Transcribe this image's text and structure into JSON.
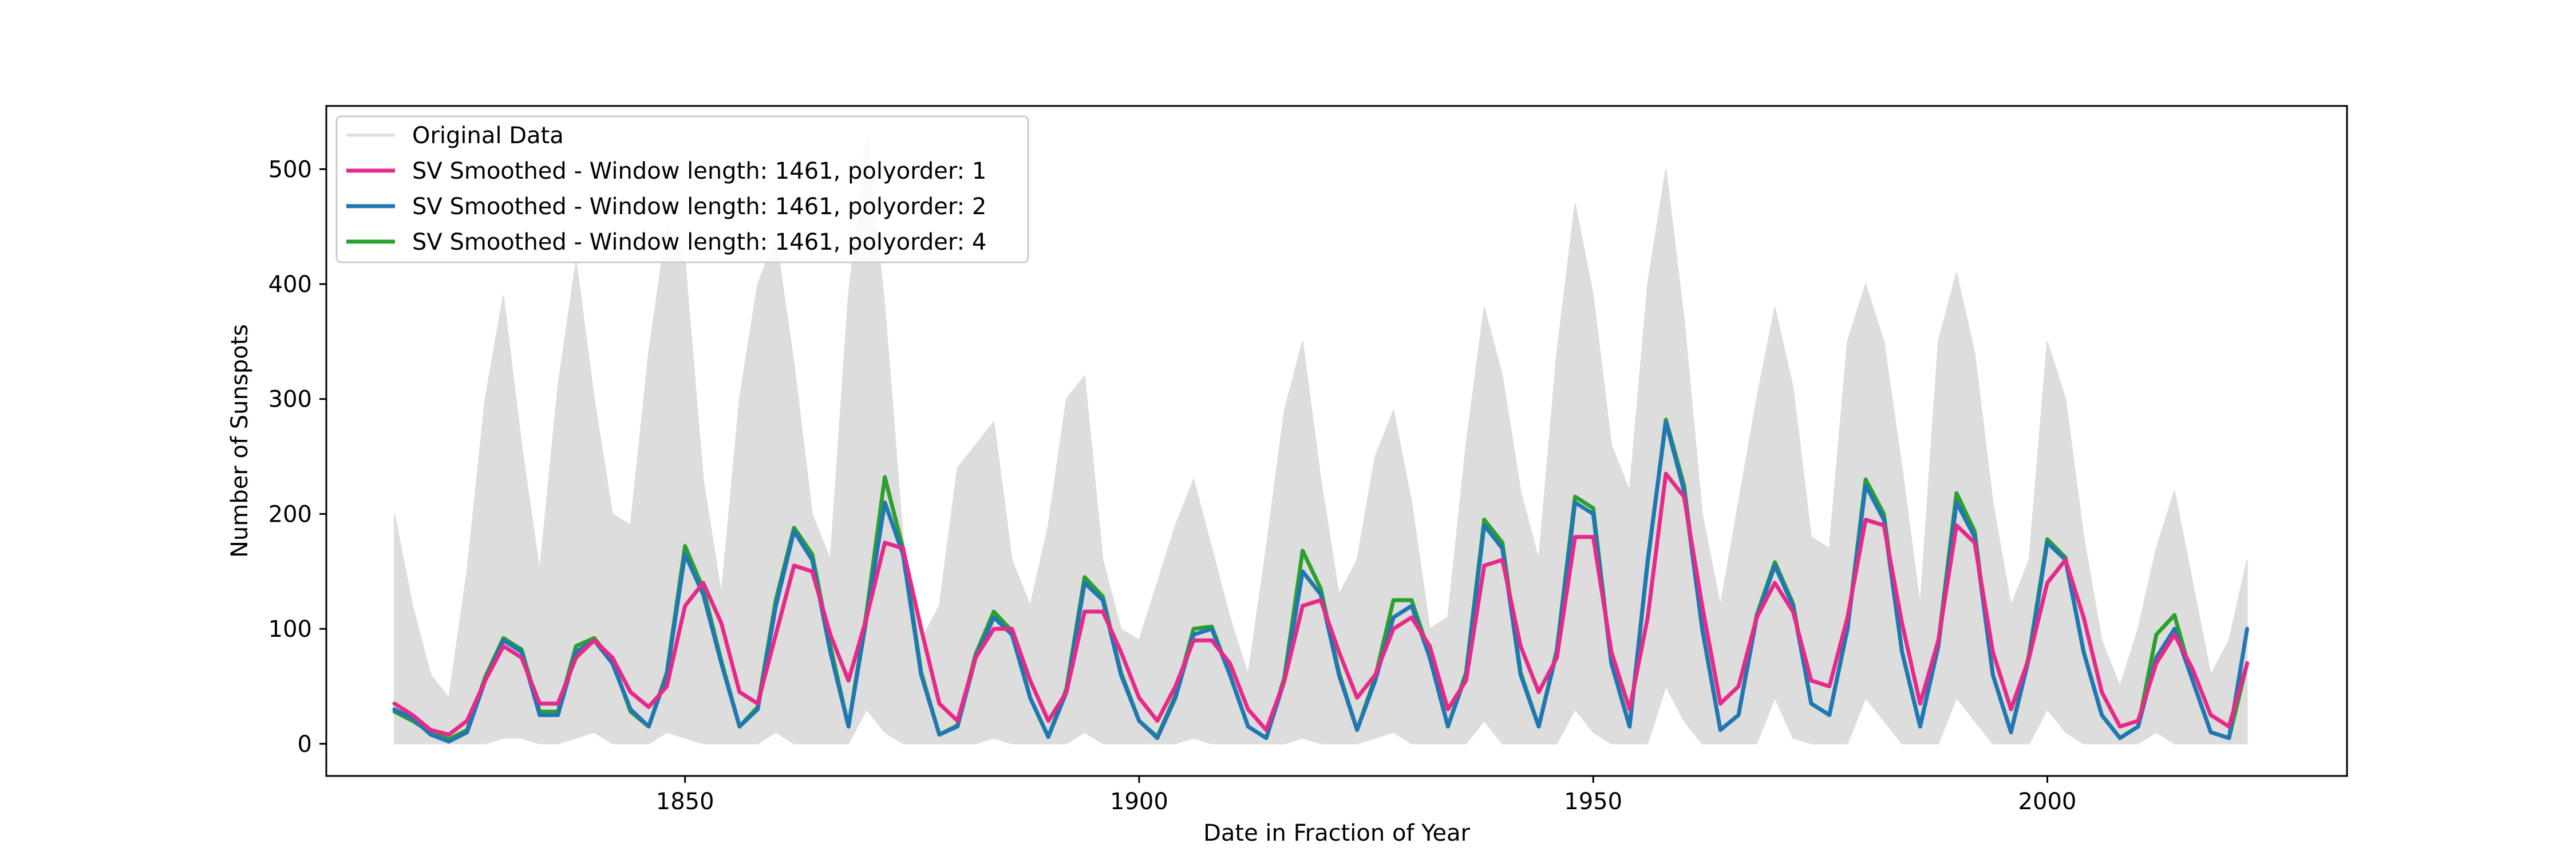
{
  "chart_data": {
    "type": "line",
    "title": "",
    "xlabel": "Date in Fraction of Year",
    "ylabel": "Number of Sunspots",
    "xlim": [
      1810.5,
      2033
    ],
    "ylim": [
      -28,
      555
    ],
    "xticks": [
      1850,
      1900,
      1950,
      2000
    ],
    "yticks": [
      0,
      100,
      200,
      300,
      400,
      500
    ],
    "grid": false,
    "legend_position": "top-left",
    "colors": {
      "original": "#dddddd",
      "poly1": "#e7298a",
      "poly2": "#1f77b4",
      "poly4": "#2ca02c"
    },
    "series": [
      {
        "name": "Original Data",
        "style": "band",
        "x": [
          1818,
          1820,
          1822,
          1824,
          1826,
          1828,
          1830,
          1832,
          1834,
          1836,
          1838,
          1840,
          1842,
          1844,
          1846,
          1848,
          1850,
          1852,
          1854,
          1856,
          1858,
          1860,
          1862,
          1864,
          1866,
          1868,
          1870,
          1872,
          1874,
          1876,
          1878,
          1880,
          1882,
          1884,
          1886,
          1888,
          1890,
          1892,
          1894,
          1896,
          1898,
          1900,
          1902,
          1904,
          1906,
          1908,
          1910,
          1912,
          1914,
          1916,
          1918,
          1920,
          1922,
          1924,
          1926,
          1928,
          1930,
          1932,
          1934,
          1936,
          1938,
          1940,
          1942,
          1944,
          1946,
          1948,
          1950,
          1952,
          1954,
          1956,
          1958,
          1960,
          1962,
          1964,
          1966,
          1968,
          1970,
          1972,
          1974,
          1976,
          1978,
          1980,
          1982,
          1984,
          1986,
          1988,
          1990,
          1992,
          1994,
          1996,
          1998,
          2000,
          2002,
          2004,
          2006,
          2008,
          2010,
          2012,
          2014,
          2016,
          2018,
          2020,
          2022
        ],
        "low": [
          0,
          0,
          0,
          0,
          0,
          0,
          5,
          5,
          0,
          0,
          5,
          10,
          0,
          0,
          0,
          10,
          5,
          0,
          0,
          0,
          0,
          10,
          0,
          0,
          0,
          0,
          30,
          10,
          0,
          0,
          0,
          0,
          0,
          5,
          0,
          0,
          0,
          0,
          10,
          0,
          0,
          0,
          0,
          0,
          5,
          0,
          0,
          0,
          0,
          0,
          5,
          0,
          0,
          0,
          5,
          10,
          0,
          0,
          0,
          0,
          20,
          0,
          0,
          0,
          0,
          30,
          10,
          0,
          0,
          0,
          50,
          20,
          0,
          0,
          0,
          0,
          40,
          5,
          0,
          0,
          0,
          40,
          20,
          0,
          0,
          0,
          40,
          20,
          0,
          0,
          0,
          30,
          10,
          0,
          0,
          0,
          0,
          10,
          0,
          0,
          0,
          0,
          0
        ],
        "high": [
          200,
          120,
          60,
          40,
          150,
          300,
          390,
          260,
          150,
          310,
          420,
          300,
          200,
          190,
          340,
          450,
          420,
          230,
          130,
          300,
          400,
          440,
          330,
          200,
          160,
          390,
          530,
          380,
          180,
          90,
          120,
          240,
          260,
          280,
          160,
          120,
          190,
          300,
          320,
          160,
          100,
          90,
          140,
          190,
          230,
          170,
          110,
          60,
          170,
          290,
          350,
          230,
          130,
          160,
          250,
          290,
          210,
          100,
          110,
          260,
          380,
          320,
          220,
          160,
          340,
          470,
          390,
          260,
          220,
          400,
          500,
          370,
          200,
          120,
          210,
          300,
          380,
          310,
          180,
          170,
          350,
          400,
          350,
          240,
          120,
          350,
          410,
          340,
          210,
          120,
          160,
          350,
          300,
          180,
          90,
          50,
          100,
          170,
          220,
          140,
          60,
          90,
          160
        ]
      },
      {
        "name": "SV Smoothed - Window length: 1461, polyorder: 1",
        "x": [
          1818,
          1820,
          1822,
          1824,
          1826,
          1828,
          1830,
          1832,
          1834,
          1836,
          1838,
          1840,
          1842,
          1844,
          1846,
          1848,
          1850,
          1852,
          1854,
          1856,
          1858,
          1860,
          1862,
          1864,
          1866,
          1868,
          1870,
          1872,
          1874,
          1876,
          1878,
          1880,
          1882,
          1884,
          1886,
          1888,
          1890,
          1892,
          1894,
          1896,
          1898,
          1900,
          1902,
          1904,
          1906,
          1908,
          1910,
          1912,
          1914,
          1916,
          1918,
          1920,
          1922,
          1924,
          1926,
          1928,
          1930,
          1932,
          1934,
          1936,
          1938,
          1940,
          1942,
          1944,
          1946,
          1948,
          1950,
          1952,
          1954,
          1956,
          1958,
          1960,
          1962,
          1964,
          1966,
          1968,
          1970,
          1972,
          1974,
          1976,
          1978,
          1980,
          1982,
          1984,
          1986,
          1988,
          1990,
          1992,
          1994,
          1996,
          1998,
          2000,
          2002,
          2004,
          2006,
          2008,
          2010,
          2012,
          2014,
          2016,
          2018,
          2020,
          2022
        ],
        "values": [
          35,
          25,
          12,
          8,
          20,
          55,
          85,
          75,
          35,
          35,
          75,
          90,
          75,
          45,
          32,
          50,
          120,
          140,
          105,
          45,
          35,
          95,
          155,
          150,
          95,
          55,
          110,
          175,
          170,
          100,
          35,
          20,
          75,
          100,
          100,
          55,
          20,
          45,
          115,
          115,
          80,
          40,
          20,
          50,
          90,
          90,
          70,
          30,
          12,
          55,
          120,
          125,
          80,
          40,
          60,
          100,
          110,
          85,
          30,
          55,
          155,
          160,
          85,
          45,
          75,
          180,
          180,
          80,
          30,
          110,
          235,
          215,
          120,
          35,
          50,
          110,
          140,
          115,
          55,
          50,
          110,
          195,
          190,
          105,
          35,
          90,
          190,
          175,
          80,
          30,
          75,
          140,
          160,
          110,
          45,
          15,
          20,
          70,
          95,
          65,
          25,
          15,
          70
        ]
      },
      {
        "name": "SV Smoothed - Window length: 1461, polyorder: 2",
        "x": [
          1818,
          1820,
          1822,
          1824,
          1826,
          1828,
          1830,
          1832,
          1834,
          1836,
          1838,
          1840,
          1842,
          1844,
          1846,
          1848,
          1850,
          1852,
          1854,
          1856,
          1858,
          1860,
          1862,
          1864,
          1866,
          1868,
          1870,
          1872,
          1874,
          1876,
          1878,
          1880,
          1882,
          1884,
          1886,
          1888,
          1890,
          1892,
          1894,
          1896,
          1898,
          1900,
          1902,
          1904,
          1906,
          1908,
          1910,
          1912,
          1914,
          1916,
          1918,
          1920,
          1922,
          1924,
          1926,
          1928,
          1930,
          1932,
          1934,
          1936,
          1938,
          1940,
          1942,
          1944,
          1946,
          1948,
          1950,
          1952,
          1954,
          1956,
          1958,
          1960,
          1962,
          1964,
          1966,
          1968,
          1970,
          1972,
          1974,
          1976,
          1978,
          1980,
          1982,
          1984,
          1986,
          1988,
          1990,
          1992,
          1994,
          1996,
          1998,
          2000,
          2002,
          2004,
          2006,
          2008,
          2010,
          2012,
          2014,
          2016,
          2018,
          2020,
          2022
        ],
        "values": [
          30,
          22,
          8,
          2,
          10,
          55,
          90,
          80,
          25,
          25,
          80,
          90,
          70,
          30,
          15,
          60,
          165,
          130,
          70,
          15,
          30,
          120,
          185,
          160,
          80,
          15,
          110,
          210,
          165,
          60,
          8,
          15,
          75,
          110,
          95,
          40,
          6,
          45,
          140,
          125,
          60,
          20,
          5,
          40,
          95,
          100,
          60,
          15,
          5,
          55,
          150,
          130,
          60,
          12,
          55,
          110,
          120,
          75,
          15,
          60,
          190,
          170,
          60,
          15,
          80,
          210,
          200,
          70,
          15,
          160,
          280,
          220,
          100,
          12,
          25,
          110,
          155,
          120,
          35,
          25,
          100,
          225,
          195,
          80,
          15,
          85,
          210,
          180,
          60,
          10,
          75,
          175,
          160,
          80,
          25,
          5,
          15,
          75,
          100,
          55,
          10,
          5,
          100
        ]
      },
      {
        "name": "SV Smoothed - Window length: 1461, polyorder: 4",
        "x": [
          1818,
          1820,
          1822,
          1824,
          1826,
          1828,
          1830,
          1832,
          1834,
          1836,
          1838,
          1840,
          1842,
          1844,
          1846,
          1848,
          1850,
          1852,
          1854,
          1856,
          1858,
          1860,
          1862,
          1864,
          1866,
          1868,
          1870,
          1872,
          1874,
          1876,
          1878,
          1880,
          1882,
          1884,
          1886,
          1888,
          1890,
          1892,
          1894,
          1896,
          1898,
          1900,
          1902,
          1904,
          1906,
          1908,
          1910,
          1912,
          1914,
          1916,
          1918,
          1920,
          1922,
          1924,
          1926,
          1928,
          1930,
          1932,
          1934,
          1936,
          1938,
          1940,
          1942,
          1944,
          1946,
          1948,
          1950,
          1952,
          1954,
          1956,
          1958,
          1960,
          1962,
          1964,
          1966,
          1968,
          1970,
          1972,
          1974,
          1976,
          1978,
          1980,
          1982,
          1984,
          1986,
          1988,
          1990,
          1992,
          1994,
          1996,
          1998,
          2000,
          2002,
          2004,
          2006,
          2008,
          2010,
          2012,
          2014,
          2016,
          2018,
          2020,
          2022
        ],
        "values": [
          28,
          20,
          10,
          4,
          12,
          58,
          92,
          82,
          28,
          28,
          85,
          92,
          72,
          28,
          15,
          62,
          172,
          135,
          72,
          15,
          32,
          125,
          188,
          165,
          85,
          15,
          115,
          232,
          170,
          62,
          8,
          16,
          78,
          115,
          98,
          40,
          6,
          48,
          145,
          128,
          62,
          20,
          6,
          42,
          100,
          102,
          60,
          15,
          5,
          58,
          168,
          135,
          62,
          12,
          58,
          125,
          125,
          78,
          15,
          62,
          195,
          175,
          62,
          15,
          82,
          215,
          205,
          70,
          15,
          158,
          282,
          225,
          100,
          12,
          25,
          112,
          158,
          122,
          35,
          25,
          100,
          230,
          200,
          80,
          15,
          88,
          218,
          185,
          60,
          10,
          78,
          178,
          162,
          80,
          25,
          5,
          15,
          95,
          112,
          55,
          10,
          5,
          70
        ]
      }
    ]
  }
}
